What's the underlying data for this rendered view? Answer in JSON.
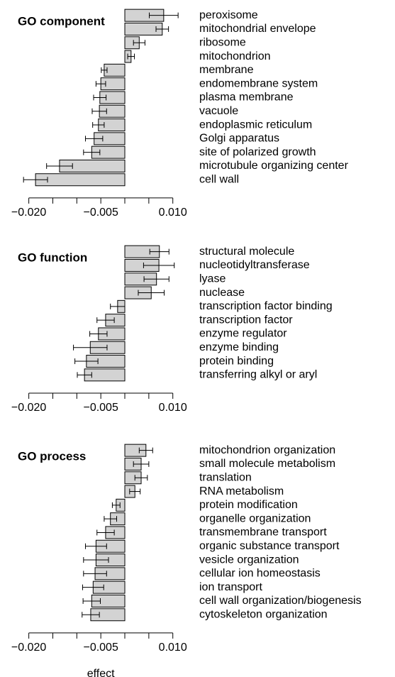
{
  "chart_data": [
    {
      "type": "bar",
      "orientation": "horizontal",
      "title": "GO component",
      "color": "#d3d3d3",
      "categories": [
        "peroxisome",
        "mitochondrial envelope",
        "ribosome",
        "mitochondrion",
        "membrane",
        "endomembrane system",
        "plasma membrane",
        "vacuole",
        "endoplasmic reticulum",
        "Golgi apparatus",
        "site of polarized growth",
        "microtubule organizing center",
        "cell wall"
      ],
      "values": [
        0.0081,
        0.0078,
        0.003,
        0.0013,
        -0.0043,
        -0.005,
        -0.0052,
        -0.0053,
        -0.0055,
        -0.0064,
        -0.0069,
        -0.0136,
        -0.0186
      ],
      "errors": [
        0.003,
        0.0013,
        0.0012,
        0.0007,
        0.0006,
        0.001,
        0.0013,
        0.0015,
        0.0012,
        0.0018,
        0.0017,
        0.0027,
        0.0025
      ],
      "xlim": [
        -0.0225,
        0.0135
      ],
      "xticks": [
        {
          "value": -0.02,
          "label": "−0.020"
        },
        {
          "value": -0.005,
          "label": "−0.005"
        },
        {
          "value": 0.01,
          "label": "0.010"
        }
      ],
      "minor_xticks": [
        -0.015,
        -0.01,
        0,
        0.005
      ]
    },
    {
      "type": "bar",
      "orientation": "horizontal",
      "title": "GO function",
      "color": "#d3d3d3",
      "categories": [
        "structural molecule",
        "nucleotidyltransferase",
        "lyase",
        "nuclease",
        "transcription factor binding",
        "transcription factor",
        "enzyme regulator",
        "enzyme binding",
        "protein binding",
        "transferring alkyl or aryl"
      ],
      "values": [
        0.0072,
        0.0071,
        0.0066,
        0.0055,
        -0.0015,
        -0.004,
        -0.0055,
        -0.0072,
        -0.008,
        -0.0084
      ],
      "errors": [
        0.002,
        0.0032,
        0.0026,
        0.0027,
        0.0015,
        0.0018,
        0.0018,
        0.0035,
        0.0024,
        0.0015
      ],
      "xlim": [
        -0.0225,
        0.0135
      ],
      "xticks": [
        {
          "value": -0.02,
          "label": "−0.020"
        },
        {
          "value": -0.005,
          "label": "−0.005"
        },
        {
          "value": 0.01,
          "label": "0.010"
        }
      ],
      "minor_xticks": [
        -0.015,
        -0.01,
        0,
        0.005
      ]
    },
    {
      "type": "bar",
      "orientation": "horizontal",
      "title": "GO process",
      "color": "#d3d3d3",
      "xlabel": "effect",
      "categories": [
        "mitochondrion organization",
        "small molecule metabolism",
        "translation",
        "RNA metabolism",
        "protein modification",
        "organelle organization",
        "transmembrane transport",
        "organic substance transport",
        "vesicle organization",
        "cellular ion homeostasis",
        "ion transport",
        "cell wall organization/biogenesis",
        "cytoskeleton organization"
      ],
      "values": [
        0.0044,
        0.0034,
        0.0034,
        0.0021,
        -0.0018,
        -0.003,
        -0.004,
        -0.006,
        -0.006,
        -0.0062,
        -0.0066,
        -0.0069,
        -0.0071
      ],
      "errors": [
        0.0014,
        0.0016,
        0.0013,
        0.0011,
        0.0008,
        0.0013,
        0.0018,
        0.0022,
        0.0026,
        0.0024,
        0.0022,
        0.0018,
        0.0018
      ],
      "xlim": [
        -0.0225,
        0.0135
      ],
      "xticks": [
        {
          "value": -0.02,
          "label": "−0.020"
        },
        {
          "value": -0.005,
          "label": "−0.005"
        },
        {
          "value": 0.01,
          "label": "0.010"
        }
      ],
      "minor_xticks": [
        -0.015,
        -0.01,
        0,
        0.005
      ]
    }
  ]
}
